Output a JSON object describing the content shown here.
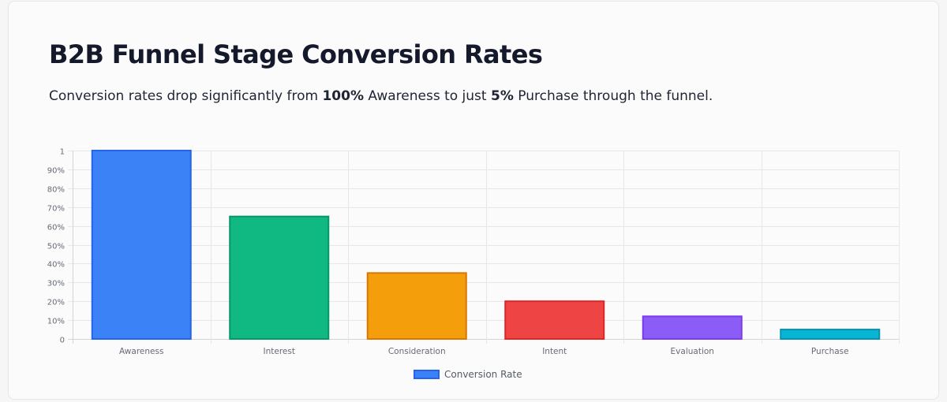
{
  "header": {
    "title": "B2B Funnel Stage Conversion Rates",
    "subtitle_pre": "Conversion rates drop significantly from ",
    "subtitle_b1": "100%",
    "subtitle_mid": " Awareness to just ",
    "subtitle_b2": "5%",
    "subtitle_post": " Purchase through the funnel."
  },
  "chart_data": {
    "type": "bar",
    "categories": [
      "Awareness",
      "Interest",
      "Consideration",
      "Intent",
      "Evaluation",
      "Purchase"
    ],
    "series": [
      {
        "name": "Conversion Rate",
        "values": [
          1.0,
          0.65,
          0.35,
          0.2,
          0.12,
          0.05
        ]
      }
    ],
    "bar_colors": [
      "#3b82f6",
      "#10b981",
      "#f59e0b",
      "#ef4444",
      "#8b5cf6",
      "#06b6d4"
    ],
    "bar_border_colors": [
      "#2563eb",
      "#059669",
      "#d97706",
      "#dc2626",
      "#7c3aed",
      "#0891b2"
    ],
    "ylim": [
      0,
      1
    ],
    "ytick_labels": [
      "0",
      "10%",
      "20%",
      "30%",
      "40%",
      "50%",
      "60%",
      "70%",
      "80%",
      "90%",
      "1"
    ],
    "grid": true,
    "legend_position": "bottom"
  }
}
